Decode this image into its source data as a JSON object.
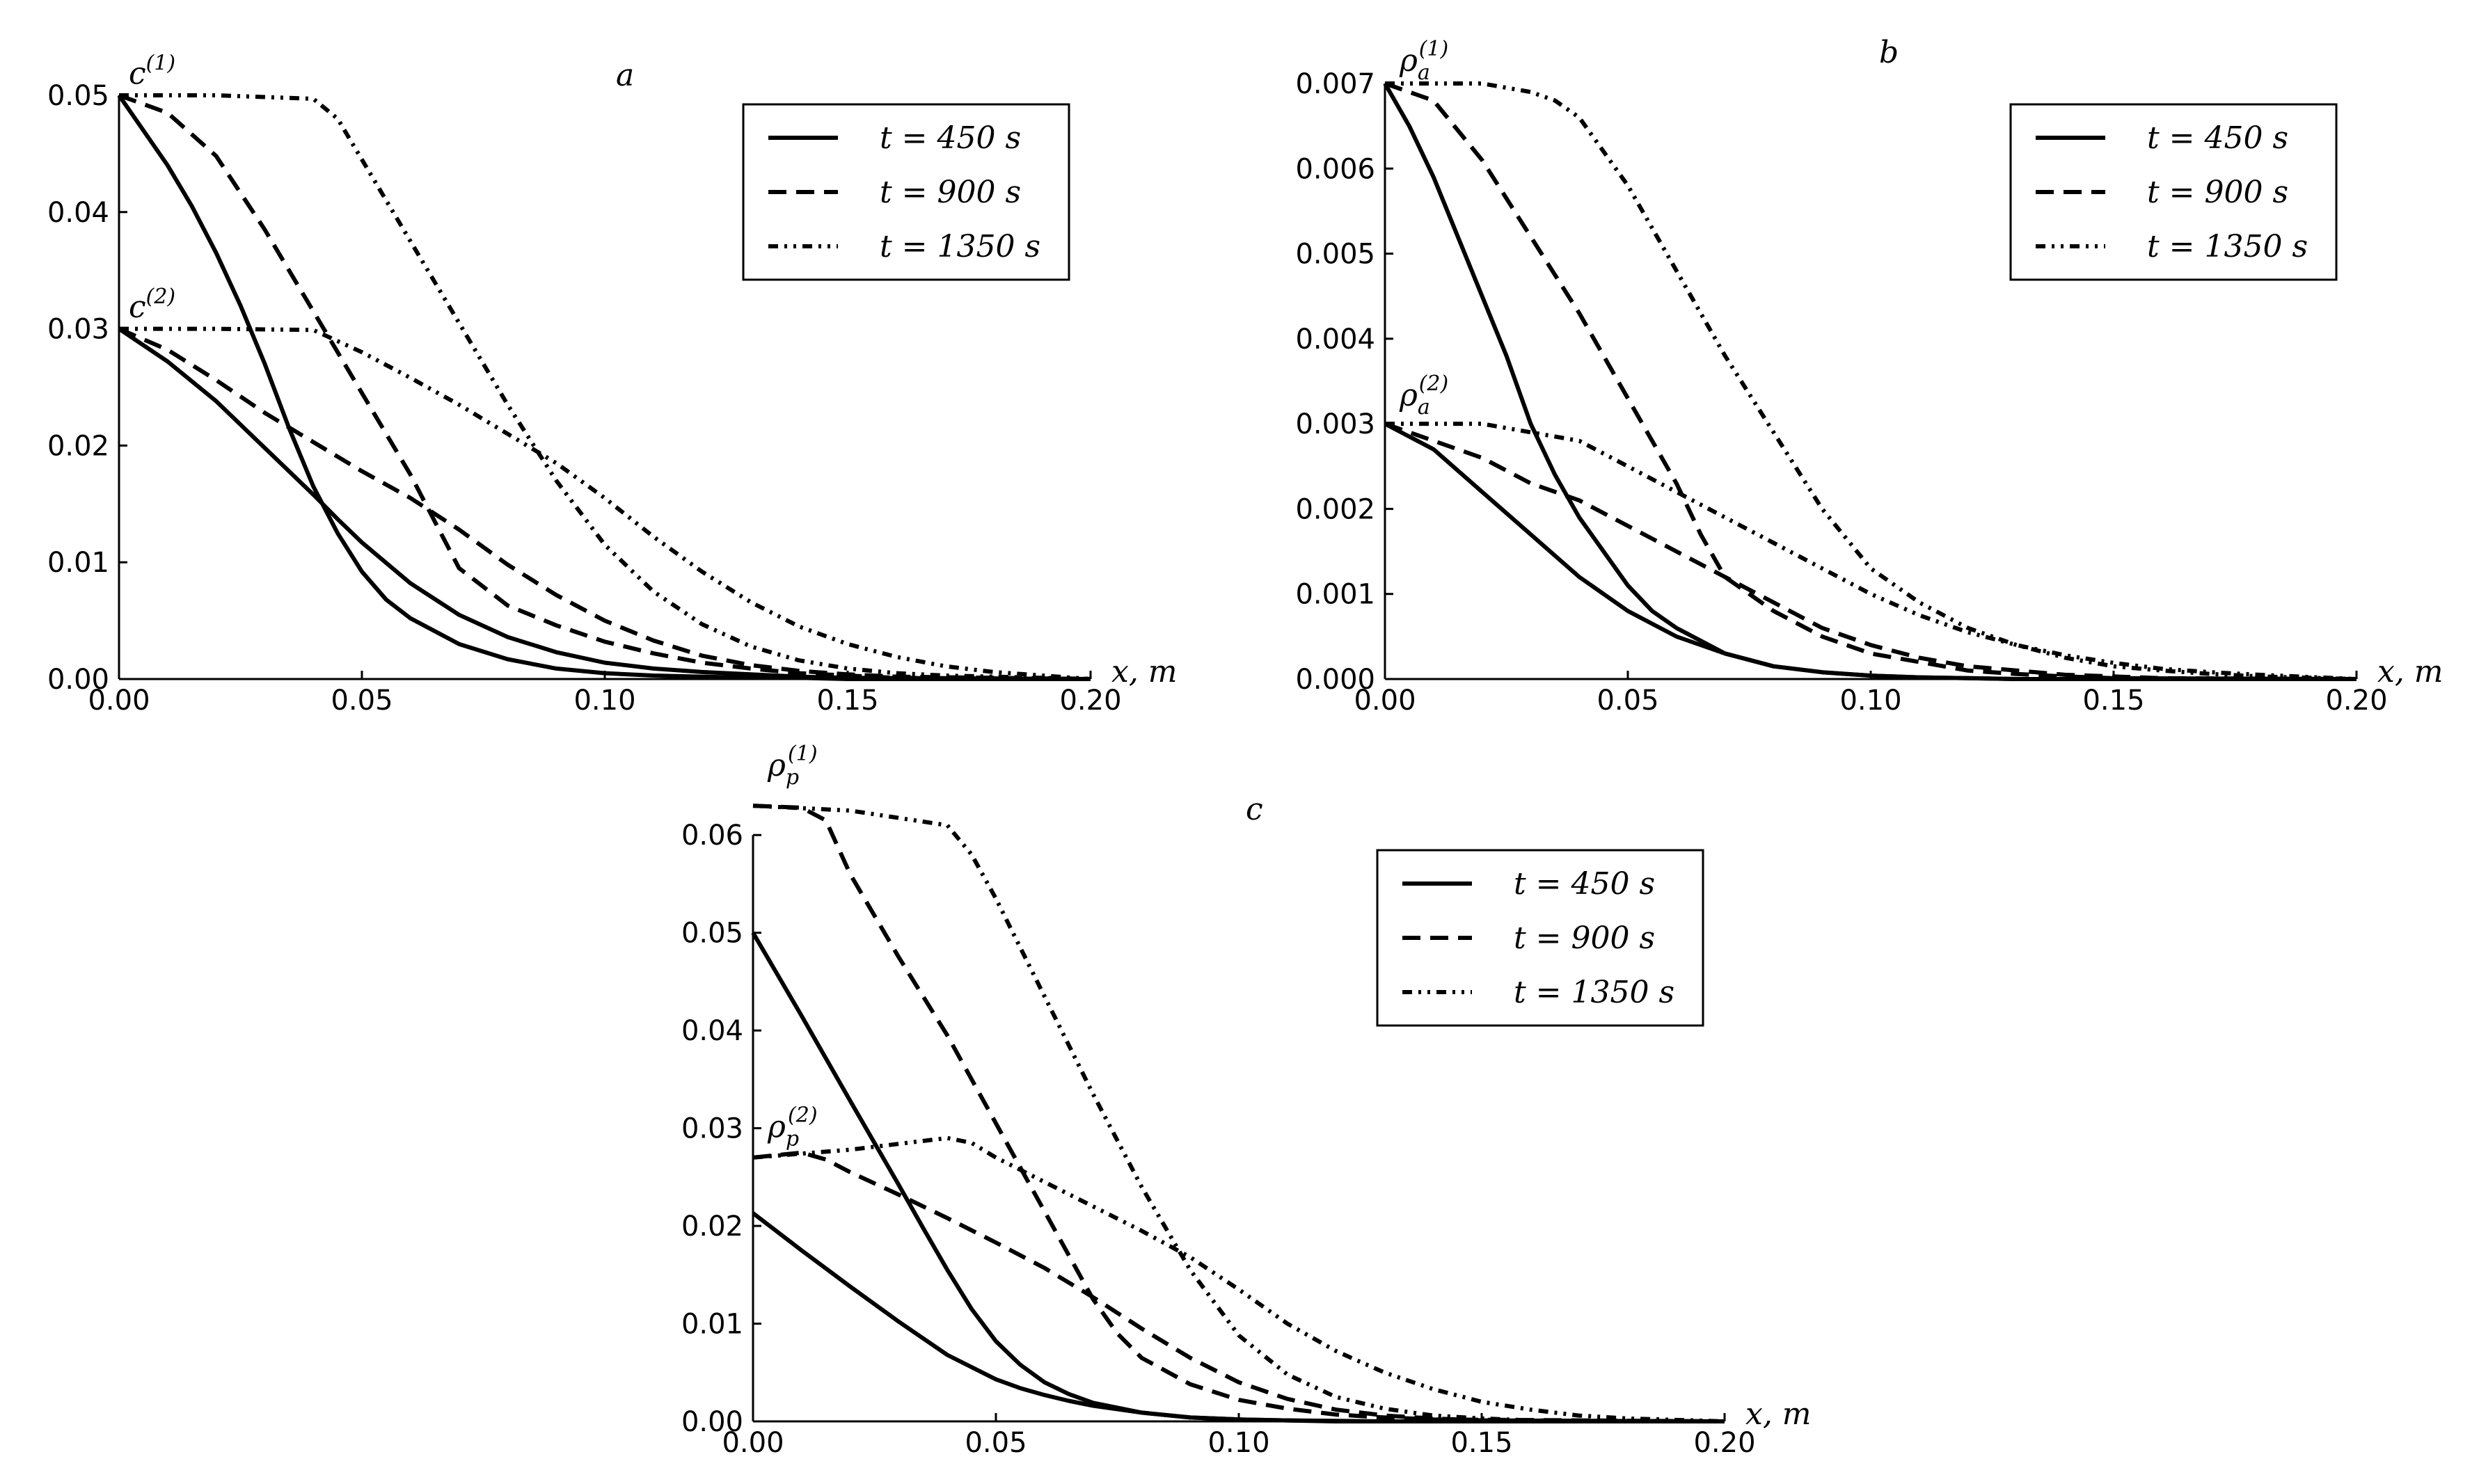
{
  "line_styles": {
    "t450": "solid",
    "t900": "dashed",
    "t1350": "dash-dot-dot"
  },
  "chart_data": [
    {
      "type": "line",
      "panel": "a",
      "panel_label": "a",
      "xlabel": "x, m",
      "xlim": [
        0,
        0.2
      ],
      "ylim": [
        0,
        0.05
      ],
      "x_ticks": [
        0,
        0.05,
        0.1,
        0.15,
        0.2
      ],
      "x_tick_labels": [
        "0.00",
        "0.05",
        "0.10",
        "0.15",
        "0.20"
      ],
      "y_ticks": [
        0,
        0.01,
        0.02,
        0.03,
        0.04,
        0.05
      ],
      "y_tick_labels": [
        "0.00",
        "0.01",
        "0.02",
        "0.03",
        "0.04",
        "0.05"
      ],
      "legend": [
        {
          "label": "t = 450 s",
          "style": "solid"
        },
        {
          "label": "t = 900 s",
          "style": "dashed"
        },
        {
          "label": "t = 1350 s",
          "style": "dash-dot-dot"
        }
      ],
      "curve_labels": [
        {
          "text": "c",
          "sup": "(1)",
          "sub": "",
          "x": 0.002,
          "y": 0.0505
        },
        {
          "text": "c",
          "sup": "(2)",
          "sub": "",
          "x": 0.002,
          "y": 0.0305
        }
      ],
      "series": [
        {
          "name": "c(1), t = 450 s",
          "style": "solid",
          "x": [
            0,
            0.005,
            0.01,
            0.015,
            0.02,
            0.025,
            0.03,
            0.035,
            0.04,
            0.045,
            0.05,
            0.055,
            0.06,
            0.07,
            0.08,
            0.09,
            0.1,
            0.11,
            0.12,
            0.13,
            0.14,
            0.15,
            0.2
          ],
          "y": [
            0.05,
            0.047,
            0.044,
            0.0405,
            0.0365,
            0.032,
            0.027,
            0.0215,
            0.0165,
            0.0125,
            0.0092,
            0.0068,
            0.0052,
            0.003,
            0.0017,
            0.0009,
            0.0005,
            0.0003,
            0.0002,
            0.0001,
            0.0001,
            0.0,
            0.0
          ]
        },
        {
          "name": "c(2), t = 450 s",
          "style": "solid",
          "x": [
            0,
            0.01,
            0.02,
            0.03,
            0.04,
            0.045,
            0.05,
            0.06,
            0.07,
            0.08,
            0.09,
            0.1,
            0.11,
            0.12,
            0.13,
            0.14,
            0.15,
            0.2
          ],
          "y": [
            0.03,
            0.0272,
            0.0238,
            0.0198,
            0.0158,
            0.0137,
            0.0117,
            0.0082,
            0.0055,
            0.0036,
            0.0023,
            0.0014,
            0.0009,
            0.0006,
            0.0004,
            0.0002,
            0.0001,
            0.0
          ]
        },
        {
          "name": "c(1), t = 900 s",
          "style": "dashed",
          "x": [
            0,
            0.01,
            0.02,
            0.03,
            0.04,
            0.05,
            0.06,
            0.065,
            0.07,
            0.08,
            0.09,
            0.1,
            0.11,
            0.12,
            0.13,
            0.14,
            0.15,
            0.16,
            0.2
          ],
          "y": [
            0.05,
            0.0485,
            0.0448,
            0.0385,
            0.0315,
            0.0245,
            0.0175,
            0.0135,
            0.0095,
            0.0063,
            0.0046,
            0.0032,
            0.0022,
            0.0014,
            0.0009,
            0.0005,
            0.0003,
            0.0001,
            0.0
          ]
        },
        {
          "name": "c(2), t = 900 s",
          "style": "dashed",
          "x": [
            0,
            0.01,
            0.02,
            0.03,
            0.04,
            0.05,
            0.06,
            0.07,
            0.08,
            0.09,
            0.1,
            0.11,
            0.12,
            0.13,
            0.14,
            0.15,
            0.16,
            0.2
          ],
          "y": [
            0.03,
            0.0282,
            0.0256,
            0.0228,
            0.0203,
            0.0178,
            0.0155,
            0.0128,
            0.0098,
            0.0072,
            0.005,
            0.0033,
            0.002,
            0.0012,
            0.0007,
            0.0004,
            0.0002,
            0.0
          ]
        },
        {
          "name": "c(1), t = 1350 s",
          "style": "dash-dot-dot",
          "x": [
            0,
            0.02,
            0.04,
            0.045,
            0.05,
            0.06,
            0.07,
            0.08,
            0.09,
            0.1,
            0.11,
            0.12,
            0.13,
            0.14,
            0.15,
            0.16,
            0.17,
            0.18,
            0.2
          ],
          "y": [
            0.05,
            0.05,
            0.0497,
            0.048,
            0.0445,
            0.0375,
            0.0305,
            0.0235,
            0.017,
            0.0115,
            0.0075,
            0.0047,
            0.0028,
            0.0016,
            0.0009,
            0.0005,
            0.0003,
            0.0002,
            0.0
          ]
        },
        {
          "name": "c(2), t = 1350 s",
          "style": "dash-dot-dot",
          "x": [
            0,
            0.02,
            0.04,
            0.05,
            0.06,
            0.07,
            0.08,
            0.09,
            0.1,
            0.11,
            0.12,
            0.13,
            0.14,
            0.15,
            0.16,
            0.17,
            0.18,
            0.2
          ],
          "y": [
            0.03,
            0.03,
            0.0299,
            0.028,
            0.0258,
            0.0235,
            0.021,
            0.0185,
            0.0155,
            0.0122,
            0.0092,
            0.0066,
            0.0045,
            0.003,
            0.0019,
            0.0011,
            0.0006,
            0.0
          ]
        }
      ]
    },
    {
      "type": "line",
      "panel": "b",
      "panel_label": "b",
      "xlabel": "x, m",
      "xlim": [
        0,
        0.2
      ],
      "ylim": [
        0,
        0.007
      ],
      "x_ticks": [
        0,
        0.05,
        0.1,
        0.15,
        0.2
      ],
      "x_tick_labels": [
        "0.00",
        "0.05",
        "0.10",
        "0.15",
        "0.20"
      ],
      "y_ticks": [
        0,
        0.001,
        0.002,
        0.003,
        0.004,
        0.005,
        0.006,
        0.007
      ],
      "y_tick_labels": [
        "0.000",
        "0.001",
        "0.002",
        "0.003",
        "0.004",
        "0.005",
        "0.006",
        "0.007"
      ],
      "legend": [
        {
          "label": "t = 450 s",
          "style": "solid"
        },
        {
          "label": "t = 900 s",
          "style": "dashed"
        },
        {
          "label": "t = 1350 s",
          "style": "dash-dot-dot"
        }
      ],
      "curve_labels": [
        {
          "text": "ρ",
          "sup": "(1)",
          "sub": "a",
          "x": 0.003,
          "y": 0.00708
        },
        {
          "text": "ρ",
          "sup": "(2)",
          "sub": "a",
          "x": 0.003,
          "y": 0.00315
        }
      ],
      "series": [
        {
          "name": "rho_a(1), t = 450 s",
          "style": "solid",
          "x": [
            0,
            0.005,
            0.01,
            0.015,
            0.02,
            0.025,
            0.03,
            0.035,
            0.04,
            0.045,
            0.05,
            0.055,
            0.06,
            0.07,
            0.08,
            0.09,
            0.1,
            0.11,
            0.12,
            0.13,
            0.14,
            0.2
          ],
          "y": [
            0.007,
            0.0065,
            0.0059,
            0.0052,
            0.0045,
            0.0038,
            0.003,
            0.0024,
            0.0019,
            0.0015,
            0.0011,
            0.0008,
            0.0006,
            0.0003,
            0.00015,
            8e-05,
            4e-05,
            2e-05,
            1e-05,
            0.0,
            0.0,
            0.0
          ]
        },
        {
          "name": "rho_a(2), t = 450 s",
          "style": "solid",
          "x": [
            0,
            0.01,
            0.02,
            0.03,
            0.04,
            0.05,
            0.06,
            0.07,
            0.08,
            0.09,
            0.1,
            0.11,
            0.12,
            0.13,
            0.14,
            0.2
          ],
          "y": [
            0.003,
            0.0027,
            0.0022,
            0.0017,
            0.0012,
            0.0008,
            0.0005,
            0.0003,
            0.00015,
            8e-05,
            4e-05,
            2e-05,
            1e-05,
            0.0,
            0.0,
            0.0
          ]
        },
        {
          "name": "rho_a(1), t = 900 s",
          "style": "dashed",
          "x": [
            0,
            0.01,
            0.02,
            0.03,
            0.04,
            0.05,
            0.06,
            0.065,
            0.07,
            0.08,
            0.09,
            0.1,
            0.11,
            0.12,
            0.13,
            0.14,
            0.15,
            0.2
          ],
          "y": [
            0.007,
            0.0068,
            0.0061,
            0.0052,
            0.0043,
            0.0033,
            0.0023,
            0.0017,
            0.0012,
            0.0008,
            0.0005,
            0.0003,
            0.0002,
            0.0001,
            6e-05,
            3e-05,
            1e-05,
            0.0
          ]
        },
        {
          "name": "rho_a(2), t = 900 s",
          "style": "dashed",
          "x": [
            0,
            0.01,
            0.02,
            0.03,
            0.04,
            0.05,
            0.06,
            0.07,
            0.08,
            0.09,
            0.1,
            0.11,
            0.12,
            0.13,
            0.14,
            0.15,
            0.16,
            0.2
          ],
          "y": [
            0.003,
            0.0028,
            0.0026,
            0.0023,
            0.0021,
            0.0018,
            0.0015,
            0.0012,
            0.0009,
            0.0006,
            0.0004,
            0.00025,
            0.00015,
            0.0001,
            5e-05,
            3e-05,
            1e-05,
            0.0
          ]
        },
        {
          "name": "rho_a(1), t = 1350 s",
          "style": "dash-dot-dot",
          "x": [
            0,
            0.02,
            0.03,
            0.035,
            0.04,
            0.05,
            0.06,
            0.07,
            0.08,
            0.09,
            0.1,
            0.11,
            0.12,
            0.13,
            0.14,
            0.15,
            0.16,
            0.17,
            0.18,
            0.2
          ],
          "y": [
            0.007,
            0.007,
            0.0069,
            0.0068,
            0.0066,
            0.0058,
            0.0048,
            0.0038,
            0.0029,
            0.002,
            0.0013,
            0.0009,
            0.0006,
            0.0004,
            0.00025,
            0.00015,
            0.0001,
            6e-05,
            3e-05,
            0.0
          ]
        },
        {
          "name": "rho_a(2), t = 1350 s",
          "style": "dash-dot-dot",
          "x": [
            0,
            0.02,
            0.04,
            0.05,
            0.06,
            0.07,
            0.08,
            0.09,
            0.1,
            0.11,
            0.12,
            0.13,
            0.14,
            0.15,
            0.16,
            0.17,
            0.18,
            0.2
          ],
          "y": [
            0.003,
            0.003,
            0.0028,
            0.0025,
            0.0022,
            0.0019,
            0.0016,
            0.0013,
            0.001,
            0.00075,
            0.00055,
            0.0004,
            0.00028,
            0.00019,
            0.00012,
            8e-05,
            5e-05,
            0.0
          ]
        }
      ]
    },
    {
      "type": "line",
      "panel": "c",
      "panel_label": "c",
      "xlabel": "x, m",
      "xlim": [
        0,
        0.2
      ],
      "ylim": [
        0,
        0.065
      ],
      "x_ticks": [
        0,
        0.05,
        0.1,
        0.15,
        0.2
      ],
      "x_tick_labels": [
        "0.00",
        "0.05",
        "0.10",
        "0.15",
        "0.20"
      ],
      "y_ticks": [
        0,
        0.01,
        0.02,
        0.03,
        0.04,
        0.05,
        0.06
      ],
      "y_tick_labels": [
        "0.00",
        "0.01",
        "0.02",
        "0.03",
        "0.04",
        "0.05",
        "0.06"
      ],
      "legend": [
        {
          "label": "t = 450 s",
          "style": "solid"
        },
        {
          "label": "t = 900 s",
          "style": "dashed"
        },
        {
          "label": "t = 1350 s",
          "style": "dash-dot-dot"
        }
      ],
      "curve_labels": [
        {
          "text": "ρ",
          "sup": "(1)",
          "sub": "p",
          "x": 0.003,
          "y": 0.0655
        },
        {
          "text": "ρ",
          "sup": "(2)",
          "sub": "p",
          "x": 0.003,
          "y": 0.0285
        }
      ],
      "series": [
        {
          "name": "rho_p(1), t = 450 s",
          "style": "solid",
          "x": [
            0,
            0.01,
            0.02,
            0.03,
            0.035,
            0.04,
            0.045,
            0.05,
            0.055,
            0.06,
            0.065,
            0.07,
            0.08,
            0.09,
            0.1,
            0.11,
            0.12,
            0.13,
            0.2
          ],
          "y": [
            0.05,
            0.0415,
            0.0328,
            0.0242,
            0.0198,
            0.0155,
            0.0115,
            0.0082,
            0.0058,
            0.004,
            0.0028,
            0.0019,
            0.0009,
            0.0004,
            0.0002,
            0.0001,
            5e-05,
            0.0,
            0.0
          ]
        },
        {
          "name": "rho_p(2), t = 450 s",
          "style": "solid",
          "x": [
            0,
            0.01,
            0.02,
            0.03,
            0.04,
            0.05,
            0.055,
            0.06,
            0.065,
            0.07,
            0.08,
            0.09,
            0.1,
            0.11,
            0.12,
            0.2
          ],
          "y": [
            0.0213,
            0.0175,
            0.0138,
            0.0102,
            0.0068,
            0.0043,
            0.0034,
            0.0027,
            0.0021,
            0.0016,
            0.0009,
            0.0004,
            0.0002,
            0.0001,
            0.0,
            0.0
          ]
        },
        {
          "name": "rho_p(1), t = 900 s",
          "style": "dashed",
          "x": [
            0,
            0.01,
            0.015,
            0.02,
            0.03,
            0.04,
            0.05,
            0.06,
            0.07,
            0.075,
            0.08,
            0.09,
            0.1,
            0.11,
            0.12,
            0.13,
            0.14,
            0.2
          ],
          "y": [
            0.063,
            0.0628,
            0.0615,
            0.056,
            0.0475,
            0.0395,
            0.0305,
            0.0215,
            0.0125,
            0.009,
            0.0065,
            0.0038,
            0.0022,
            0.0013,
            0.0007,
            0.0004,
            0.0002,
            0.0
          ]
        },
        {
          "name": "rho_p(2), t = 900 s",
          "style": "dashed",
          "x": [
            0,
            0.01,
            0.015,
            0.02,
            0.03,
            0.04,
            0.05,
            0.06,
            0.07,
            0.08,
            0.09,
            0.1,
            0.11,
            0.12,
            0.13,
            0.14,
            0.15,
            0.2
          ],
          "y": [
            0.027,
            0.0275,
            0.0268,
            0.0255,
            0.0232,
            0.0208,
            0.0183,
            0.0157,
            0.0127,
            0.0095,
            0.0065,
            0.004,
            0.0023,
            0.0012,
            0.0006,
            0.0003,
            0.0001,
            0.0
          ]
        },
        {
          "name": "rho_p(1), t = 1350 s",
          "style": "dash-dot-dot",
          "x": [
            0,
            0.02,
            0.04,
            0.045,
            0.05,
            0.06,
            0.07,
            0.08,
            0.09,
            0.1,
            0.11,
            0.12,
            0.13,
            0.14,
            0.15,
            0.16,
            0.17,
            0.2
          ],
          "y": [
            0.063,
            0.0625,
            0.061,
            0.058,
            0.0535,
            0.0435,
            0.0335,
            0.024,
            0.0155,
            0.0088,
            0.0048,
            0.0025,
            0.0013,
            0.0006,
            0.0003,
            0.0001,
            5e-05,
            0.0
          ]
        },
        {
          "name": "rho_p(2), t = 1350 s",
          "style": "dash-dot-dot",
          "x": [
            0,
            0.02,
            0.04,
            0.045,
            0.05,
            0.06,
            0.07,
            0.08,
            0.09,
            0.1,
            0.11,
            0.12,
            0.13,
            0.14,
            0.15,
            0.16,
            0.17,
            0.18,
            0.2
          ],
          "y": [
            0.027,
            0.0278,
            0.029,
            0.0285,
            0.027,
            0.0245,
            0.022,
            0.0195,
            0.0168,
            0.0135,
            0.01,
            0.0072,
            0.005,
            0.0033,
            0.002,
            0.0012,
            0.0006,
            0.0003,
            0.0
          ]
        }
      ]
    }
  ]
}
